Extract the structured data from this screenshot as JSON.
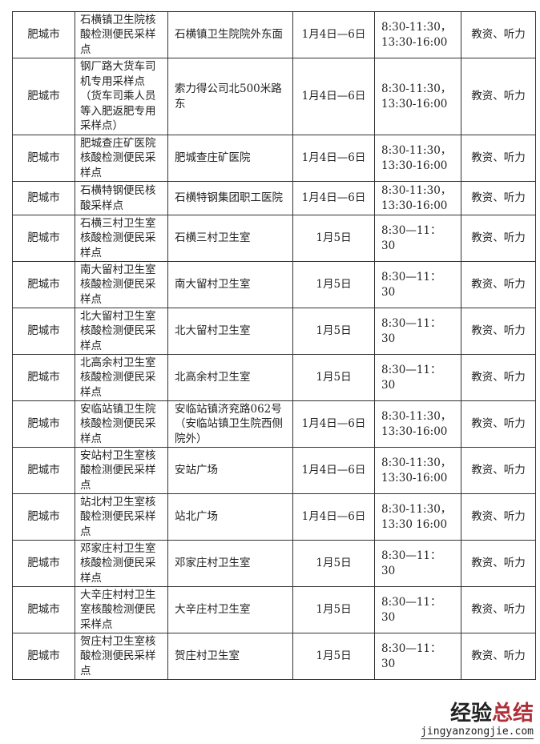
{
  "rows": [
    {
      "city": "肥城市",
      "site": "石横镇卫生院核酸检测便民采样点",
      "address": "石横镇卫生院院外东面",
      "date": "1月4日—6日",
      "time": "8:30-11:30，13:30-16:00",
      "subjects": "教资、听力"
    },
    {
      "city": "肥城市",
      "site": "钢厂路大货车司机专用采样点（货车司乘人员等入肥返肥专用采样点）",
      "address": "索力得公司北500米路东",
      "date": "1月4日—6日",
      "time": "8:30-11:30，13:30-16:00",
      "subjects": "教资、听力"
    },
    {
      "city": "肥城市",
      "site": "肥城查庄矿医院核酸检测便民采样点",
      "address": "肥城查庄矿医院",
      "date": "1月4日—6日",
      "time": "8:30-11:30，13:30-16:00",
      "subjects": "教资、听力"
    },
    {
      "city": "肥城市",
      "site": "石横特钢便民核酸采样点",
      "address": "石横特钢集团职工医院",
      "date": "1月4日—6日",
      "time": "8:30-11:30，13:30-16:00",
      "subjects": "教资、听力"
    },
    {
      "city": "肥城市",
      "site": "石横三村卫生室核酸检测便民采样点",
      "address": "石横三村卫生室",
      "date": "1月5日",
      "time": "8:30—11：30",
      "subjects": "教资、听力"
    },
    {
      "city": "肥城市",
      "site": "南大留村卫生室核酸检测便民采样点",
      "address": "南大留村卫生室",
      "date": "1月5日",
      "time": "8:30—11：30",
      "subjects": "教资、听力"
    },
    {
      "city": "肥城市",
      "site": "北大留村卫生室核酸检测便民采样点",
      "address": "北大留村卫生室",
      "date": "1月5日",
      "time": "8:30—11：30",
      "subjects": "教资、听力"
    },
    {
      "city": "肥城市",
      "site": "北高余村卫生室核酸检测便民采样点",
      "address": "北高余村卫生室",
      "date": "1月5日",
      "time": "8:30—11：30",
      "subjects": "教资、听力"
    },
    {
      "city": "肥城市",
      "site": "安临站镇卫生院核酸检测便民采样点",
      "address": "安临站镇济兖路062号（安临站镇卫生院西侧院外）",
      "date": "1月4日—6日",
      "time": "8:30-11:30，13:30-16:00",
      "subjects": "教资、听力"
    },
    {
      "city": "肥城市",
      "site": "安站村卫生室核酸检测便民采样点",
      "address": "安站广场",
      "date": "1月4日—6日",
      "time": "8:30-11:30，13:30-16:00",
      "subjects": "教资、听力"
    },
    {
      "city": "肥城市",
      "site": "站北村卫生室核酸检测便民采样点",
      "address": "站北广场",
      "date": "1月4日—6日",
      "time": "8:30-11:30，13:30 16:00",
      "subjects": "教资、听力"
    },
    {
      "city": "肥城市",
      "site": "邓家庄村卫生室核酸检测便民采样点",
      "address": "邓家庄村卫生室",
      "date": "1月5日",
      "time": "8:30—11：30",
      "subjects": "教资、听力"
    },
    {
      "city": "肥城市",
      "site": "大辛庄村村卫生室核酸检测便民采样点",
      "address": "大辛庄村卫生室",
      "date": "1月5日",
      "time": "8:30—11：30",
      "subjects": "教资、听力"
    },
    {
      "city": "肥城市",
      "site": "贺庄村卫生室核酸检测便民采样点",
      "address": "贺庄村卫生室",
      "date": "1月5日",
      "time": "8:30—11：30",
      "subjects": "教资、听力"
    }
  ],
  "watermark": {
    "text_a": "经验",
    "text_b": "总结",
    "url": "jingyanzongjie.com"
  }
}
